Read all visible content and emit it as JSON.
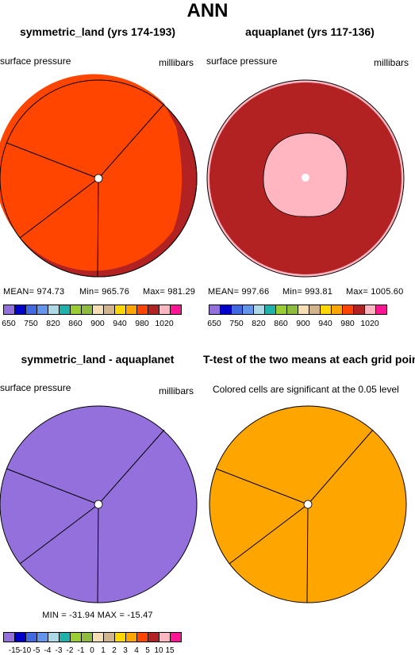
{
  "figure": {
    "title": "ANN"
  },
  "panels": [
    {
      "title": "symmetric_land (yrs 174-193)",
      "left_label": "surface pressure",
      "right_label": "millibars",
      "stats": {
        "mean": "MEAN= 974.73",
        "min": "Min= 965.76",
        "max": "Max= 981.29"
      },
      "fill_color": "#FF4500",
      "edge_color": "#B22222"
    },
    {
      "title": "aquaplanet (yrs 117-136)",
      "left_label": "surface pressure",
      "right_label": "millibars",
      "stats": {
        "mean": "MEAN= 997.66",
        "min": "Min= 993.81",
        "max": "Max= 1005.60"
      },
      "fill_color": "#B22222",
      "inner_color": "#FFB6C1"
    },
    {
      "title": "symmetric_land - aquaplanet",
      "left_label": "surface pressure",
      "right_label": "millibars",
      "stats": {
        "minmax": "MIN = -31.94  MAX = -15.47"
      },
      "fill_color": "#9370DB"
    },
    {
      "title": "T-test of the two means at each grid point",
      "note": "Colored cells are significant at the 0.05 level",
      "fill_color": "#FFA500"
    }
  ],
  "colorbar_abs": {
    "colors": [
      "#9370DB",
      "#0000CD",
      "#4169E1",
      "#6495ED",
      "#ADD8E6",
      "#20B2AA",
      "#9ACD32",
      "#8FBC3F",
      "#F5DEB3",
      "#D2B48C",
      "#FFD700",
      "#FFA500",
      "#FF4500",
      "#B22222",
      "#FFB6C1",
      "#FF1493"
    ],
    "labels": [
      "650",
      "750",
      "820",
      "860",
      "900",
      "940",
      "980",
      "1020"
    ]
  },
  "colorbar_diff": {
    "colors": [
      "#9370DB",
      "#0000CD",
      "#4169E1",
      "#6495ED",
      "#ADD8E6",
      "#20B2AA",
      "#9ACD32",
      "#8FBC3F",
      "#F5DEB3",
      "#D2B48C",
      "#FFD700",
      "#FFA500",
      "#FF4500",
      "#B22222",
      "#FFB6C1",
      "#FF1493"
    ],
    "labels": [
      "-15",
      "-10",
      "-5",
      "-4",
      "-3",
      "-2",
      "-1",
      "0",
      "1",
      "2",
      "3",
      "4",
      "5",
      "10",
      "15"
    ]
  }
}
